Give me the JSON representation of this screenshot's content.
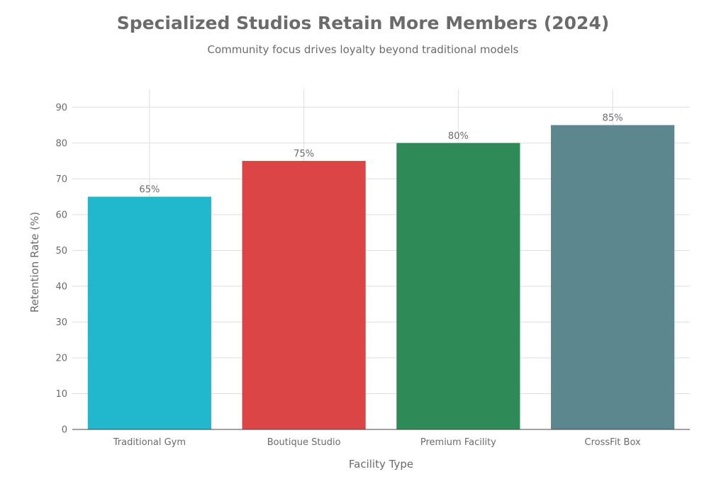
{
  "chart_data": {
    "type": "bar",
    "title": "Specialized Studios Retain More Members (2024)",
    "subtitle": "Community focus drives loyalty beyond traditional models",
    "xlabel": "Facility Type",
    "ylabel": "Retention Rate (%)",
    "categories": [
      "Traditional Gym",
      "Boutique Studio",
      "Premium Facility",
      "CrossFit Box"
    ],
    "values": [
      65,
      75,
      80,
      85
    ],
    "data_labels": [
      "65%",
      "75%",
      "80%",
      "85%"
    ],
    "colors": [
      "#21b7cc",
      "#db4545",
      "#2e8b57",
      "#5d878f"
    ],
    "ylim": [
      0,
      95
    ],
    "yticks": [
      0,
      10,
      20,
      30,
      40,
      50,
      60,
      70,
      80,
      90
    ],
    "grid": true,
    "legend": "none"
  }
}
